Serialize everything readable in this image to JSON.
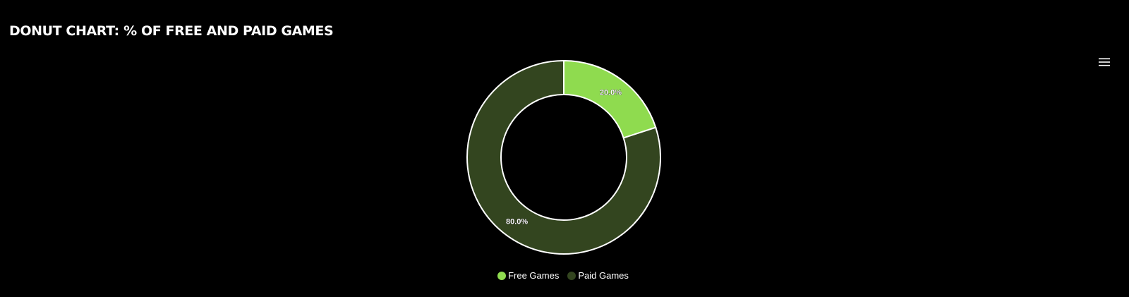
{
  "title": "DONUT CHART: % OF FREE AND PAID GAMES",
  "menu": {
    "icon": "hamburger-menu-icon"
  },
  "colors": {
    "background": "#000000",
    "slice_border": "#ffffff"
  },
  "chart_data": {
    "type": "pie",
    "variant": "donut",
    "title": "DONUT CHART: % OF FREE AND PAID GAMES",
    "categories": [
      "Free Games",
      "Paid Games"
    ],
    "values": [
      20.0,
      80.0
    ],
    "labels": [
      "20.0%",
      "80.0%"
    ],
    "colors": [
      "#8fdb4f",
      "#33451f"
    ],
    "legend_position": "bottom-center"
  },
  "legend": [
    {
      "label": "Free Games",
      "color": "#8fdb4f"
    },
    {
      "label": "Paid Games",
      "color": "#33451f"
    }
  ]
}
